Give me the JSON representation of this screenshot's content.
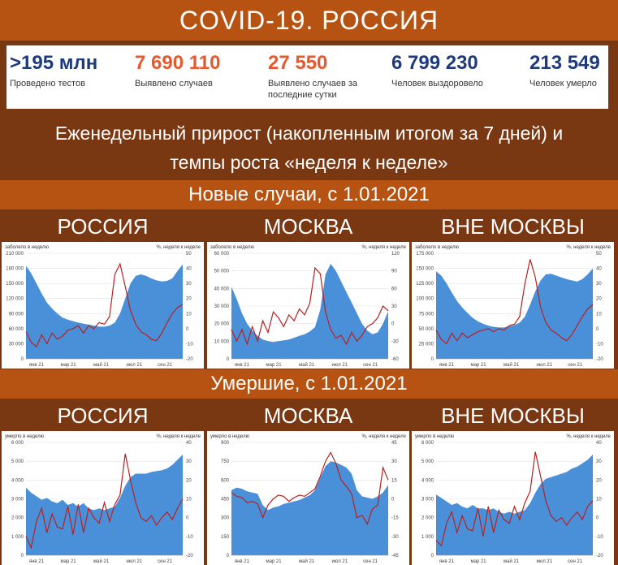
{
  "title": "COVID-19. РОССИЯ",
  "stats": [
    {
      "value": ">195 млн",
      "label": "Проведено тестов",
      "color": "#1f3a7a"
    },
    {
      "value": "7 690 110",
      "label": "Выявлено случаев",
      "color": "#e8572d"
    },
    {
      "value": "27 550",
      "label": "Выявлено случаев за последние сутки",
      "color": "#e8572d"
    },
    {
      "value": "6 799 230",
      "label": "Человек выздоровело",
      "color": "#1f3a7a"
    },
    {
      "value": "213 549",
      "label": "Человек умерло",
      "color": "#1f3a7a"
    }
  ],
  "subtitle": "Еженедельный прирост (накопленным итогом за 7 дней) и темпы роста «неделя к неделе»",
  "section_cases": "Новые случаи, с 1.01.2021",
  "section_deaths": "Умершие, с 1.01.2021",
  "colors": {
    "area": "#4a90d9",
    "line": "#b8201f",
    "accent": "#b65312"
  },
  "chart_data": [
    {
      "type": "area+line",
      "region": "РОССИЯ",
      "left_label": "заболело в неделю",
      "right_label": "%, неделя к неделе",
      "left_ticks": [
        "210 000",
        "180 000",
        "150 000",
        "120 000",
        "90 000",
        "60 000",
        "30 000",
        "0"
      ],
      "right_ticks": [
        "50",
        "40",
        "30",
        "20",
        "10",
        "0",
        "-10",
        "-20"
      ],
      "x_ticks": [
        "янв 21",
        "мар 21",
        "май 21",
        "июл 21",
        "сен 21"
      ],
      "ylim": [
        0,
        210000
      ],
      "y2lim": [
        -20,
        50
      ],
      "series": [
        {
          "values": [
            185000,
            170000,
            150000,
            130000,
            112000,
            100000,
            90000,
            82000,
            78000,
            75000,
            72000,
            70000,
            68000,
            66000,
            64000,
            64000,
            66000,
            72000,
            90000,
            120000,
            150000,
            165000,
            168000,
            165000,
            160000,
            156000,
            154000,
            155000,
            160000,
            175000,
            188000
          ]
        },
        {
          "values": [
            -2,
            -9,
            -12,
            -4,
            -10,
            -3,
            -7,
            -5,
            -1,
            0,
            2,
            -3,
            2,
            0,
            4,
            3,
            8,
            36,
            43,
            28,
            12,
            3,
            -2,
            -4,
            -7,
            -8,
            -3,
            4,
            10,
            14,
            16
          ]
        }
      ]
    },
    {
      "type": "area+line",
      "region": "МОСКВА",
      "left_label": "заболело в неделю",
      "right_label": "%, неделя к неделе",
      "left_ticks": [
        "60 000",
        "50 000",
        "40 000",
        "30 000",
        "20 000",
        "10 000",
        "0"
      ],
      "right_ticks": [
        "120",
        "90",
        "60",
        "30",
        "0",
        "-30",
        "-60"
      ],
      "x_ticks": [
        "янв 21",
        "мар 21",
        "май 21",
        "июл 21",
        "сен 21"
      ],
      "ylim": [
        0,
        60000
      ],
      "y2lim": [
        -60,
        120
      ],
      "series": [
        {
          "values": [
            41000,
            34000,
            26000,
            20000,
            16000,
            13000,
            11000,
            10000,
            9500,
            10000,
            10500,
            11000,
            12000,
            13000,
            14000,
            15500,
            18000,
            28000,
            48000,
            54000,
            50000,
            44000,
            38000,
            32000,
            26000,
            20000,
            16000,
            14000,
            15000,
            20000,
            27000
          ]
        },
        {
          "values": [
            -10,
            -30,
            -10,
            -35,
            -5,
            -30,
            5,
            -15,
            20,
            10,
            -5,
            15,
            5,
            25,
            15,
            35,
            95,
            85,
            20,
            -10,
            -25,
            -20,
            -35,
            -15,
            -30,
            -20,
            -5,
            0,
            10,
            30,
            22
          ]
        }
      ]
    },
    {
      "type": "area+line",
      "region": "ВНЕ МОСКВЫ",
      "left_label": "заболело в неделю",
      "right_label": "%, неделя к неделе",
      "left_ticks": [
        "175 000",
        "150 000",
        "125 000",
        "100 000",
        "75 000",
        "50 000",
        "25 000",
        "0"
      ],
      "right_ticks": [
        "50",
        "40",
        "30",
        "20",
        "10",
        "0",
        "-10",
        "-20"
      ],
      "x_ticks": [
        "янв 21",
        "мар 21",
        "май 21",
        "июл 21",
        "сен 21"
      ],
      "ylim": [
        0,
        175000
      ],
      "y2lim": [
        -20,
        50
      ],
      "series": [
        {
          "values": [
            145000,
            138000,
            125000,
            110000,
            96000,
            85000,
            76000,
            68000,
            62000,
            58000,
            55000,
            53000,
            52000,
            52000,
            54000,
            56000,
            60000,
            70000,
            90000,
            112000,
            130000,
            140000,
            141000,
            138000,
            135000,
            132000,
            130000,
            128000,
            132000,
            140000,
            150000
          ]
        },
        {
          "values": [
            -1,
            -7,
            -10,
            -3,
            -8,
            -3,
            -6,
            -4,
            -2,
            -1,
            0,
            -2,
            0,
            -1,
            2,
            3,
            8,
            30,
            46,
            34,
            14,
            4,
            -1,
            -3,
            -6,
            -8,
            -4,
            2,
            8,
            13,
            16
          ]
        }
      ]
    },
    {
      "type": "area+line",
      "region": "РОССИЯ",
      "left_label": "умерло в неделю",
      "right_label": "%, неделя к неделе",
      "left_ticks": [
        "6 000",
        "5 000",
        "4 000",
        "3 000",
        "2 000",
        "1 000",
        "0"
      ],
      "right_ticks": [
        "40",
        "30",
        "20",
        "10",
        "0",
        "-10",
        "-20"
      ],
      "x_ticks": [
        "янв 21",
        "мар 21",
        "май 21",
        "июл 21",
        "сен 21"
      ],
      "ylim": [
        0,
        6500
      ],
      "y2lim": [
        -20,
        40
      ],
      "series": [
        {
          "values": [
            3900,
            3600,
            3400,
            3200,
            3300,
            3100,
            3000,
            3200,
            2900,
            3000,
            2800,
            3000,
            2700,
            2600,
            2700,
            2600,
            2700,
            2800,
            3300,
            4000,
            4500,
            4700,
            4700,
            4700,
            4800,
            4850,
            4900,
            5000,
            5200,
            5500,
            5800
          ]
        },
        {
          "values": [
            -10,
            -16,
            -2,
            5,
            -8,
            2,
            -5,
            -6,
            6,
            -9,
            7,
            -8,
            5,
            0,
            -3,
            8,
            -2,
            7,
            12,
            34,
            20,
            8,
            0,
            -2,
            1,
            -4,
            0,
            3,
            -1,
            5,
            10
          ]
        }
      ]
    },
    {
      "type": "area+line",
      "region": "МОСКВА",
      "left_label": "умерло в неделю",
      "right_label": "%, неделя к неделе",
      "left_ticks": [
        "900",
        "750",
        "600",
        "450",
        "300",
        "150",
        "0"
      ],
      "right_ticks": [
        "45",
        "30",
        "15",
        "0",
        "-15",
        "-30",
        "-45"
      ],
      "x_ticks": [
        "янв 21",
        "мар 21",
        "май 21",
        "июл 21",
        "сен 21"
      ],
      "ylim": [
        0,
        900
      ],
      "y2lim": [
        -45,
        45
      ],
      "series": [
        {
          "values": [
            520,
            540,
            530,
            510,
            500,
            490,
            400,
            360,
            380,
            390,
            410,
            420,
            430,
            440,
            460,
            480,
            520,
            620,
            710,
            750,
            740,
            720,
            700,
            650,
            520,
            470,
            460,
            450,
            470,
            500,
            560
          ]
        },
        {
          "values": [
            5,
            2,
            1,
            -3,
            -2,
            -4,
            -15,
            -5,
            0,
            3,
            2,
            -2,
            1,
            3,
            2,
            5,
            8,
            18,
            30,
            37,
            28,
            15,
            10,
            4,
            -15,
            -13,
            -20,
            -8,
            -5,
            25,
            15
          ]
        }
      ]
    },
    {
      "type": "area+line",
      "region": "ВНЕ МОСКВЫ",
      "left_label": "умерло в неделю",
      "right_label": "%, неделя к неделе",
      "left_ticks": [
        "6 000",
        "5 000",
        "4 000",
        "3 000",
        "2 000",
        "1 000",
        "0"
      ],
      "right_ticks": [
        "40",
        "30",
        "20",
        "10",
        "0",
        "-10",
        "-20"
      ],
      "x_ticks": [
        "янв 21",
        "мар 21",
        "май 21",
        "июл 21",
        "сен 21"
      ],
      "ylim": [
        0,
        6500
      ],
      "y2lim": [
        -20,
        40
      ],
      "series": [
        {
          "values": [
            3500,
            3300,
            3100,
            2900,
            3000,
            2800,
            2700,
            2900,
            2700,
            2700,
            2600,
            2700,
            2500,
            2400,
            2500,
            2400,
            2500,
            2600,
            3000,
            3600,
            4100,
            4400,
            4500,
            4600,
            4700,
            4800,
            5000,
            5100,
            5300,
            5500,
            5800
          ]
        },
        {
          "values": [
            -12,
            -15,
            -3,
            3,
            -8,
            1,
            -6,
            -7,
            5,
            -10,
            6,
            -8,
            4,
            -1,
            -3,
            6,
            -1,
            8,
            14,
            35,
            22,
            9,
            1,
            -2,
            0,
            -4,
            0,
            3,
            -1,
            6,
            9
          ]
        }
      ]
    }
  ]
}
